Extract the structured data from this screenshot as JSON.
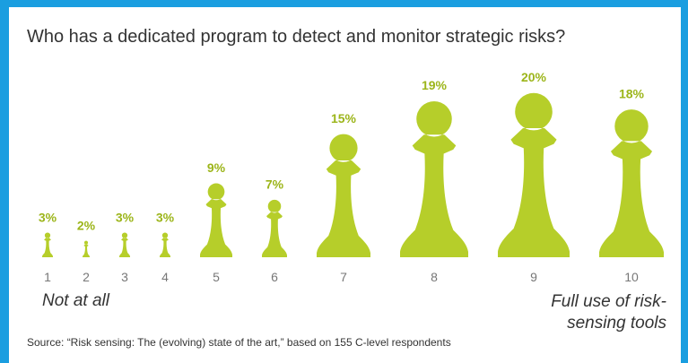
{
  "chart_data": {
    "type": "pictograph",
    "title": "Who has a dedicated program to detect and monitor strategic risks?",
    "categories": [
      "1",
      "2",
      "3",
      "4",
      "5",
      "6",
      "7",
      "8",
      "9",
      "10"
    ],
    "values": [
      3,
      2,
      3,
      3,
      9,
      7,
      15,
      19,
      20,
      18
    ],
    "value_labels": [
      "3%",
      "2%",
      "3%",
      "3%",
      "9%",
      "7%",
      "15%",
      "19%",
      "20%",
      "18%"
    ],
    "color": "#b6ce2a",
    "annotations": [
      "Not at all",
      "Full use of risk-sensing tools"
    ],
    "source": "Source: “Risk sensing: The (evolving) state of the art,” based on 155 C-level respondents"
  }
}
